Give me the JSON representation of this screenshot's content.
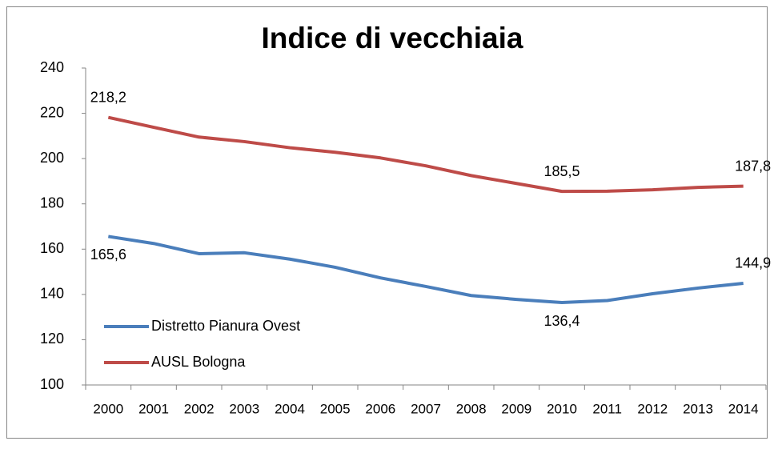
{
  "chart_data": {
    "type": "line",
    "title": "Indice di vecchiaia",
    "categories": [
      "2000",
      "2001",
      "2002",
      "2003",
      "2004",
      "2005",
      "2006",
      "2007",
      "2008",
      "2009",
      "2010",
      "2011",
      "2012",
      "2013",
      "2014"
    ],
    "series": [
      {
        "name": "Distretto Pianura Ovest",
        "color": "#4a7ebb",
        "values": [
          165.6,
          162.5,
          158.0,
          158.4,
          155.6,
          152.0,
          147.3,
          143.5,
          139.5,
          137.8,
          136.4,
          137.3,
          140.3,
          142.8,
          144.9
        ],
        "value_labels": [
          "165,6",
          null,
          null,
          null,
          null,
          null,
          null,
          null,
          null,
          null,
          "136,4",
          null,
          null,
          null,
          "144,9"
        ]
      },
      {
        "name": "AUSL Bologna",
        "color": "#be4b48",
        "values": [
          218.2,
          213.8,
          209.5,
          207.5,
          204.8,
          202.8,
          200.3,
          196.8,
          192.5,
          189.0,
          185.5,
          185.6,
          186.2,
          187.3,
          187.8
        ],
        "value_labels": [
          "218,2",
          null,
          null,
          null,
          null,
          null,
          null,
          null,
          null,
          null,
          "185,5",
          null,
          null,
          null,
          "187,8"
        ]
      }
    ],
    "ylim": [
      100,
      240
    ],
    "yticks": [
      100,
      120,
      140,
      160,
      180,
      200,
      220,
      240
    ],
    "grid": false,
    "legend": "lower left"
  }
}
